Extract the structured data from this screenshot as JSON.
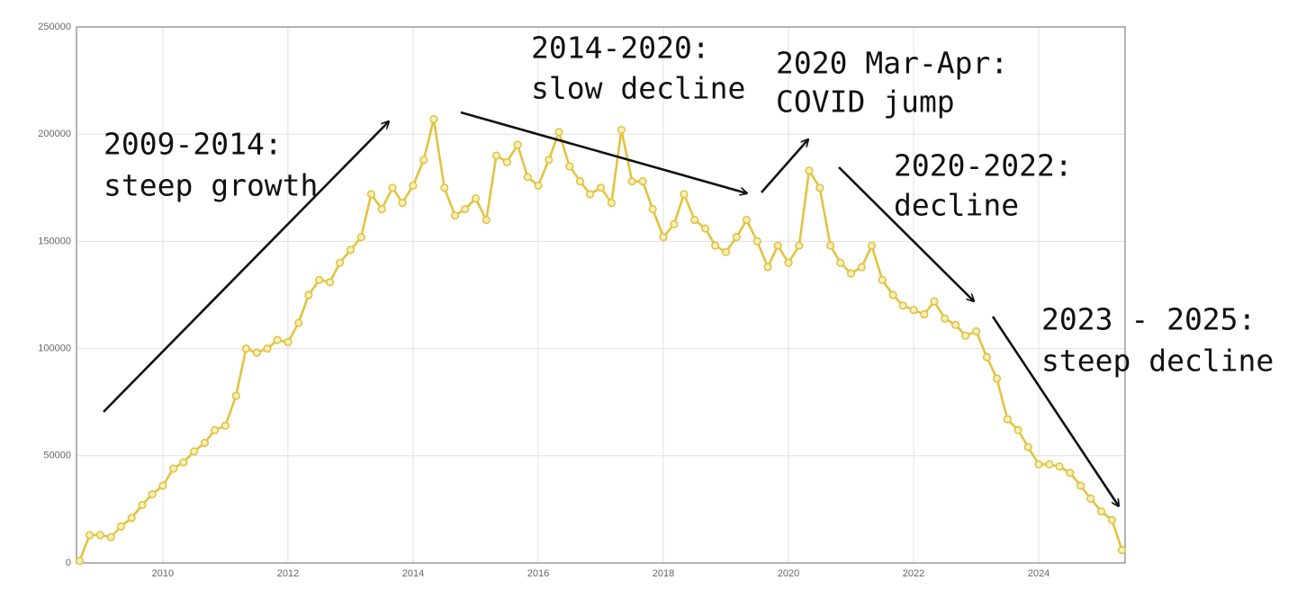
{
  "chart_data": {
    "type": "line",
    "x": [
      2008.67,
      2008.83,
      2009,
      2009.17,
      2009.33,
      2009.5,
      2009.67,
      2009.83,
      2010,
      2010.17,
      2010.33,
      2010.5,
      2010.67,
      2010.83,
      2011,
      2011.17,
      2011.33,
      2011.5,
      2011.67,
      2011.83,
      2012,
      2012.17,
      2012.33,
      2012.5,
      2012.67,
      2012.83,
      2013,
      2013.17,
      2013.33,
      2013.5,
      2013.67,
      2013.83,
      2014,
      2014.17,
      2014.33,
      2014.5,
      2014.67,
      2014.83,
      2015,
      2015.17,
      2015.33,
      2015.5,
      2015.67,
      2015.83,
      2016,
      2016.17,
      2016.33,
      2016.5,
      2016.67,
      2016.83,
      2017,
      2017.17,
      2017.33,
      2017.5,
      2017.67,
      2017.83,
      2018,
      2018.17,
      2018.33,
      2018.5,
      2018.67,
      2018.83,
      2019,
      2019.17,
      2019.33,
      2019.5,
      2019.67,
      2019.83,
      2020,
      2020.17,
      2020.33,
      2020.5,
      2020.67,
      2020.83,
      2021,
      2021.17,
      2021.33,
      2021.5,
      2021.67,
      2021.83,
      2022,
      2022.17,
      2022.33,
      2022.5,
      2022.67,
      2022.83,
      2023,
      2023.17,
      2023.33,
      2023.5,
      2023.67,
      2023.83,
      2024,
      2024.17,
      2024.33,
      2024.5,
      2024.67,
      2024.83,
      2025,
      2025.17,
      2025.33
    ],
    "values": [
      1000,
      13000,
      13000,
      12000,
      17000,
      21000,
      27000,
      32000,
      36000,
      44000,
      47000,
      52000,
      56000,
      62000,
      64000,
      78000,
      100000,
      98000,
      100000,
      104000,
      103000,
      112000,
      125000,
      132000,
      131000,
      140000,
      146000,
      152000,
      172000,
      165000,
      175000,
      168000,
      176000,
      188000,
      207000,
      175000,
      162000,
      165000,
      170000,
      160000,
      190000,
      187000,
      195000,
      180000,
      176000,
      188000,
      201000,
      185000,
      178000,
      172000,
      175000,
      168000,
      202000,
      178000,
      178000,
      165000,
      152000,
      158000,
      172000,
      160000,
      156000,
      148000,
      145000,
      152000,
      160000,
      150000,
      138000,
      148000,
      140000,
      148000,
      183000,
      175000,
      148000,
      140000,
      135000,
      138000,
      148000,
      132000,
      125000,
      120000,
      118000,
      116000,
      122000,
      114000,
      111000,
      106000,
      108000,
      96000,
      86000,
      67000,
      62000,
      54000,
      46000,
      46000,
      45000,
      42000,
      36000,
      30000,
      24000,
      20000,
      6000
    ],
    "color": "#e2c33f",
    "xlim": [
      2008.62,
      2025.38
    ],
    "xticks": [
      2010,
      2012,
      2014,
      2016,
      2018,
      2020,
      2022,
      2024
    ],
    "ylim": [
      0,
      250000
    ],
    "yticks": [
      0,
      50000,
      100000,
      150000,
      200000,
      250000
    ],
    "grid": true,
    "annotations": [
      [
        "2009-2014:",
        "steep growth"
      ],
      [
        "2014-2020:",
        "slow decline"
      ],
      [
        "2020 Mar-Apr:",
        "COVID jump"
      ],
      [
        "2020-2022:",
        "decline"
      ],
      [
        "2023 - 2025:",
        "steep decline"
      ]
    ]
  }
}
